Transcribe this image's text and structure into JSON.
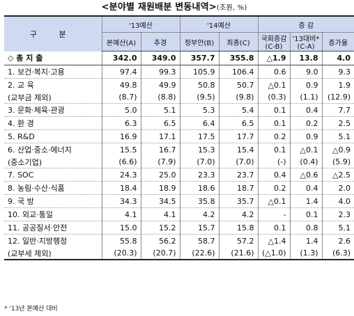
{
  "title": "<분야별 재원배분 변동내역>",
  "unit": "(조원, %)",
  "headers": {
    "gubun": "구  분",
    "y13": "'13예산",
    "y14": "'14예산",
    "change": "증  감",
    "y13_main": "본예산(A)",
    "y13_supp": "추경",
    "y14_gov": "정부안(B)",
    "y14_final": "최종(C)",
    "d_assembly": "국회증감 (C-B)",
    "d_13": "'13대비* (C-A)",
    "d_rate": "증가율"
  },
  "rows": [
    {
      "item": "◇ 총 지 출",
      "a": "342.0",
      "b": "349.0",
      "c": "357.7",
      "d": "355.8",
      "e": "△1.9",
      "f": "13.8",
      "g": "4.0"
    },
    {
      "item": "1. 보건·복지·고용",
      "a": "97.4",
      "b": "99.3",
      "c": "105.9",
      "d": "106.4",
      "e": "0.6",
      "f": "9.0",
      "g": "9.3"
    },
    {
      "item": "2. 교 육",
      "a": "49.8",
      "b": "49.9",
      "c": "50.8",
      "d": "50.7",
      "e": "△0.1",
      "f": "0.9",
      "g": "1.9"
    },
    {
      "item": "(교부금 제외)",
      "a": "(8.7)",
      "b": "(8.8)",
      "c": "(9.5)",
      "d": "(9.8)",
      "e": "(0.3)",
      "f": "(1.1)",
      "g": "(12.9)"
    },
    {
      "item": "3. 문화·체육·관광",
      "a": "5.0",
      "b": "5.1",
      "c": "5.3",
      "d": "5.4",
      "e": "0.1",
      "f": "0.4",
      "g": "7.7"
    },
    {
      "item": "4. 환 경",
      "a": "6.3",
      "b": "6.5",
      "c": "6.4",
      "d": "6.5",
      "e": "0.1",
      "f": "0.2",
      "g": "2.5"
    },
    {
      "item": "5. R&D",
      "a": "16.9",
      "b": "17.1",
      "c": "17.5",
      "d": "17.7",
      "e": "0.2",
      "f": "0.9",
      "g": "5.1"
    },
    {
      "item": "6. 산업·중소·에너지",
      "a": "15.5",
      "b": "16.7",
      "c": "15.3",
      "d": "15.4",
      "e": "0.1",
      "f": "△0.1",
      "g": "△0.9"
    },
    {
      "item": "(중소기업)",
      "a": "(6.6)",
      "b": "(7.9)",
      "c": "(7.0)",
      "d": "(7.0)",
      "e": "(-)",
      "f": "(0.4)",
      "g": "(5.9)"
    },
    {
      "item": "7. SOC",
      "a": "24.3",
      "b": "25.0",
      "c": "23.3",
      "d": "23.7",
      "e": "0.4",
      "f": "△0.6",
      "g": "△2.5"
    },
    {
      "item": "8. 농림·수산·식품",
      "a": "18.4",
      "b": "18.9",
      "c": "18.6",
      "d": "18.7",
      "e": "0.2",
      "f": "0.4",
      "g": "2.0"
    },
    {
      "item": "9. 국 방",
      "a": "34.3",
      "b": "34.5",
      "c": "35.8",
      "d": "35.7",
      "e": "△0.1",
      "f": "1.4",
      "g": "4.0"
    },
    {
      "item": "10. 외교·통일",
      "a": "4.1",
      "b": "4.1",
      "c": "4.2",
      "d": "4.2",
      "e": "-",
      "f": "0.1",
      "g": "2.3"
    },
    {
      "item": "11. 공공질서·안전",
      "a": "15.0",
      "b": "15.2",
      "c": "15.7",
      "d": "15.8",
      "e": "0.1",
      "f": "0.8",
      "g": "5.1"
    },
    {
      "item": "12. 일반·지방행정",
      "a": "55.8",
      "b": "56.2",
      "c": "58.7",
      "d": "57.2",
      "e": "△1.4",
      "f": "1.4",
      "g": "2.6"
    },
    {
      "item": "(교부세 제외)",
      "a": "(20.3)",
      "b": "(20.7)",
      "c": "(22.6)",
      "d": "(21.6)",
      "e": "(△1.0)",
      "f": "(1.3)",
      "g": "(6.3)"
    }
  ],
  "footnote": "* '13년 본예산 대비"
}
